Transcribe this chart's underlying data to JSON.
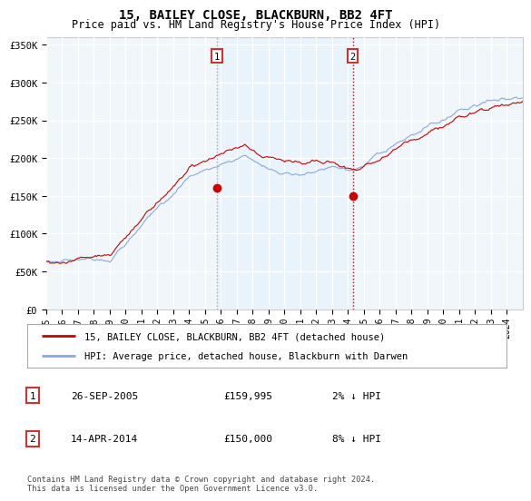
{
  "title": "15, BAILEY CLOSE, BLACKBURN, BB2 4FT",
  "subtitle": "Price paid vs. HM Land Registry's House Price Index (HPI)",
  "title_fontsize": 10,
  "subtitle_fontsize": 8.5,
  "ylabel_ticks": [
    "£0",
    "£50K",
    "£100K",
    "£150K",
    "£200K",
    "£250K",
    "£300K",
    "£350K"
  ],
  "ytick_values": [
    0,
    50000,
    100000,
    150000,
    200000,
    250000,
    300000,
    350000
  ],
  "ylim": [
    0,
    360000
  ],
  "xlim_start": 1995.0,
  "xlim_end": 2025.0,
  "plot_bg_color": "#f0f6fa",
  "hpi_color": "#88aadd",
  "price_color": "#cc0000",
  "grid_color": "#ffffff",
  "vline1_color": "#aaaaaa",
  "vline2_color": "#cc0000",
  "vline_style": ":",
  "shade_color": "#ddeeff",
  "sale1_x": 2005.74,
  "sale1_y": 159995,
  "sale1_label": "1",
  "sale2_x": 2014.29,
  "sale2_y": 150000,
  "sale2_label": "2",
  "legend_price_label": "15, BAILEY CLOSE, BLACKBURN, BB2 4FT (detached house)",
  "legend_hpi_label": "HPI: Average price, detached house, Blackburn with Darwen",
  "annotation1_date": "26-SEP-2005",
  "annotation1_price": "£159,995",
  "annotation1_hpi": "2% ↓ HPI",
  "annotation2_date": "14-APR-2014",
  "annotation2_price": "£150,000",
  "annotation2_hpi": "8% ↓ HPI",
  "footer": "Contains HM Land Registry data © Crown copyright and database right 2024.\nThis data is licensed under the Open Government Licence v3.0.",
  "xtick_years": [
    1995,
    1996,
    1997,
    1998,
    1999,
    2000,
    2001,
    2002,
    2003,
    2004,
    2005,
    2006,
    2007,
    2008,
    2009,
    2010,
    2011,
    2012,
    2013,
    2014,
    2015,
    2016,
    2017,
    2018,
    2019,
    2020,
    2021,
    2022,
    2023,
    2024
  ]
}
